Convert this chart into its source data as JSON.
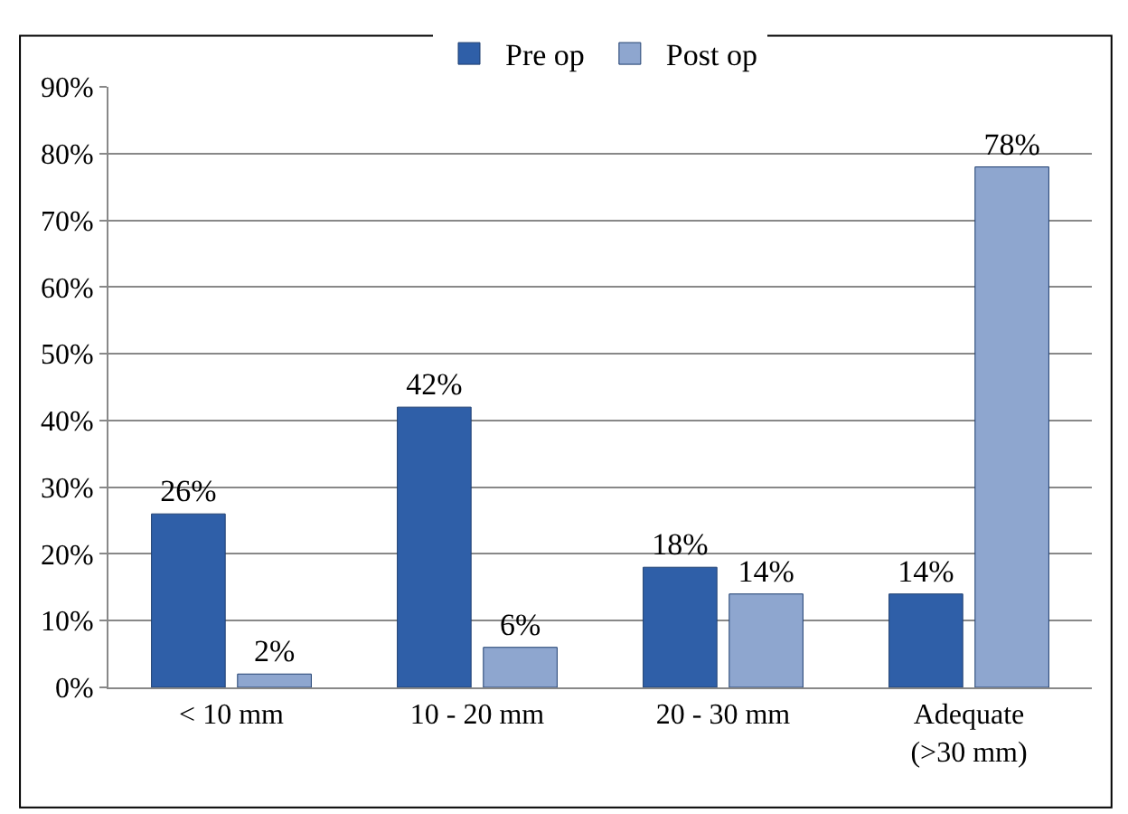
{
  "chart_data": {
    "type": "bar",
    "categories": [
      "< 10 mm",
      "10 - 20 mm",
      "20 - 30 mm",
      "Adequate\n(>30 mm)"
    ],
    "series": [
      {
        "name": "Pre op",
        "color": "#2f5fa8",
        "values": [
          26,
          42,
          18,
          14
        ],
        "value_labels": [
          "26%",
          "42%",
          "18%",
          "14%"
        ]
      },
      {
        "name": "Post op",
        "color": "#8ea6cf",
        "values": [
          2,
          6,
          14,
          78
        ],
        "value_labels": [
          "2%",
          "6%",
          "14%",
          "78%"
        ]
      }
    ],
    "ylim": [
      0,
      90
    ],
    "yticks": [
      {
        "value": 0,
        "label": "0%"
      },
      {
        "value": 10,
        "label": "10%"
      },
      {
        "value": 20,
        "label": "20%"
      },
      {
        "value": 30,
        "label": "30%"
      },
      {
        "value": 40,
        "label": "40%"
      },
      {
        "value": 50,
        "label": "50%"
      },
      {
        "value": 60,
        "label": "60%"
      },
      {
        "value": 70,
        "label": "70%"
      },
      {
        "value": 80,
        "label": "80%"
      },
      {
        "value": 90,
        "label": "90%"
      }
    ],
    "grid": "y",
    "legend": "top"
  }
}
